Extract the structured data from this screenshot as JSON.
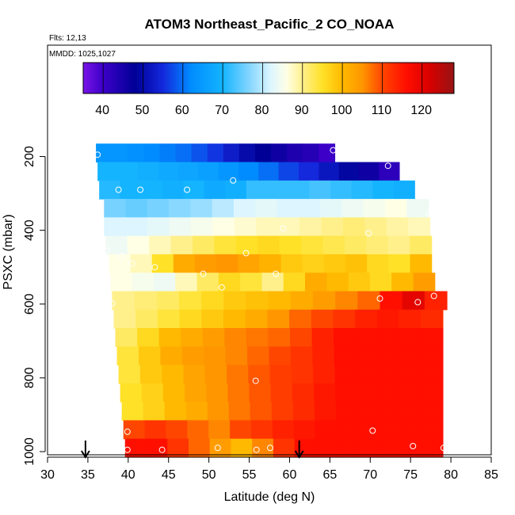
{
  "chart_data": {
    "type": "heatmap",
    "title": "ATOM3 Northeast_Pacific_2 CO_NOAA",
    "flights_label": "Flts: 12,13",
    "mmdd_label": "MMDD: 1025,1027",
    "xlabel": "Latitude (deg N)",
    "ylabel": "PSXC (mbar)",
    "xlim": [
      30,
      85
    ],
    "ylim": [
      1000,
      100
    ],
    "y_reversed": true,
    "x_ticks": [
      "30",
      "35",
      "40",
      "45",
      "50",
      "55",
      "60",
      "65",
      "70",
      "75",
      "80",
      "85"
    ],
    "y_ticks": [
      "200",
      "400",
      "600",
      "800",
      "1000"
    ],
    "colorbar": {
      "range": [
        35,
        128
      ],
      "tick_labels": [
        "40",
        "50",
        "60",
        "70",
        "80",
        "90",
        "100",
        "110",
        "120"
      ],
      "tick_values": [
        40,
        50,
        60,
        70,
        80,
        90,
        100,
        110,
        120
      ]
    },
    "arrows_latitude": [
      34.7,
      61.2
    ],
    "rows": [
      {
        "p": 190,
        "lat_start": 36.0,
        "lat_end": 65.6,
        "values": [
          64,
          64,
          63,
          62,
          61,
          60,
          58,
          56,
          53,
          50,
          48,
          46,
          44,
          43,
          40
        ]
      },
      {
        "p": 240,
        "lat_start": 36.2,
        "lat_end": 73.6,
        "values": [
          70,
          70,
          69,
          68,
          67,
          66,
          64,
          62,
          60,
          57,
          55,
          52,
          49,
          46,
          42
        ]
      },
      {
        "p": 290,
        "lat_start": 36.4,
        "lat_end": 75.5,
        "values": [
          71,
          70,
          70,
          69,
          70,
          68,
          69,
          72,
          72,
          72,
          73,
          72,
          71,
          70,
          69
        ]
      },
      {
        "p": 340,
        "lat_start": 37.0,
        "lat_end": 77.2,
        "values": [
          76,
          75,
          76,
          77,
          78,
          80,
          82,
          83,
          82,
          82,
          83,
          84,
          85,
          86,
          84
        ]
      },
      {
        "p": 390,
        "lat_start": 37.0,
        "lat_end": 77.4,
        "values": [
          82,
          82,
          83,
          84,
          85,
          86,
          87,
          88,
          88,
          89,
          90,
          91,
          90,
          89,
          88
        ]
      },
      {
        "p": 440,
        "lat_start": 37.2,
        "lat_end": 77.6,
        "values": [
          84,
          86,
          88,
          90,
          92,
          94,
          95,
          96,
          95,
          94,
          93,
          92,
          91,
          90,
          92
        ]
      },
      {
        "p": 490,
        "lat_start": 37.6,
        "lat_end": 77.6,
        "values": [
          86,
          88,
          95,
          102,
          104,
          105,
          103,
          101,
          98,
          97,
          98,
          99,
          96,
          95,
          100
        ]
      },
      {
        "p": 540,
        "lat_start": 37.8,
        "lat_end": 78.0,
        "values": [
          86,
          85,
          84,
          88,
          92,
          96,
          94,
          90,
          96,
          102,
          100,
          98,
          96,
          100,
          104
        ]
      },
      {
        "p": 590,
        "lat_start": 38.0,
        "lat_end": 79.5,
        "values": [
          90,
          91,
          92,
          94,
          96,
          98,
          99,
          100,
          102,
          104,
          106,
          108,
          116,
          120,
          114
        ]
      },
      {
        "p": 640,
        "lat_start": 38.2,
        "lat_end": 79.0,
        "values": [
          90,
          92,
          94,
          96,
          98,
          100,
          102,
          105,
          108,
          110,
          112,
          114,
          115,
          114,
          113
        ]
      },
      {
        "p": 690,
        "lat_start": 38.4,
        "lat_end": 79.0,
        "values": [
          92,
          96,
          100,
          102,
          104,
          106,
          107,
          108,
          110,
          114,
          116,
          116,
          116,
          116,
          116
        ]
      },
      {
        "p": 740,
        "lat_start": 38.6,
        "lat_end": 79.0,
        "values": [
          94,
          98,
          102,
          104,
          105,
          106,
          108,
          110,
          112,
          114,
          116,
          116,
          116,
          116,
          116
        ]
      },
      {
        "p": 790,
        "lat_start": 38.8,
        "lat_end": 79.0,
        "values": [
          94,
          98,
          100,
          103,
          105,
          107,
          109,
          111,
          112,
          114,
          116,
          116,
          116,
          116,
          116
        ]
      },
      {
        "p": 840,
        "lat_start": 39.0,
        "lat_end": 79.0,
        "values": [
          95,
          97,
          100,
          103,
          105,
          107,
          109,
          111,
          113,
          115,
          116,
          116,
          116,
          116,
          116
        ]
      },
      {
        "p": 890,
        "lat_start": 39.2,
        "lat_end": 79.0,
        "values": [
          95,
          97,
          100,
          102,
          105,
          107,
          109,
          111,
          113,
          115,
          116,
          116,
          116,
          116,
          116
        ]
      },
      {
        "p": 940,
        "lat_start": 39.4,
        "lat_end": 79.0,
        "values": [
          110,
          112,
          110,
          108,
          106,
          110,
          112,
          114,
          115,
          116,
          116,
          116,
          116,
          116,
          116
        ]
      },
      {
        "p": 990,
        "lat_start": 39.6,
        "lat_end": 79.0,
        "values": [
          116,
          116,
          112,
          108,
          104,
          100,
          106,
          112,
          116,
          116,
          116,
          116,
          116,
          116,
          116
        ]
      }
    ],
    "observation_points": [
      {
        "lat": 36.2,
        "p": 195
      },
      {
        "lat": 65.4,
        "p": 183
      },
      {
        "lat": 72.2,
        "p": 225
      },
      {
        "lat": 53.0,
        "p": 265
      },
      {
        "lat": 38.8,
        "p": 290
      },
      {
        "lat": 41.5,
        "p": 290
      },
      {
        "lat": 47.3,
        "p": 290
      },
      {
        "lat": 77.3,
        "p": 355
      },
      {
        "lat": 59.2,
        "p": 395
      },
      {
        "lat": 69.8,
        "p": 408
      },
      {
        "lat": 37.4,
        "p": 455
      },
      {
        "lat": 39.2,
        "p": 470
      },
      {
        "lat": 40.5,
        "p": 490
      },
      {
        "lat": 54.6,
        "p": 462
      },
      {
        "lat": 43.3,
        "p": 500
      },
      {
        "lat": 49.3,
        "p": 518
      },
      {
        "lat": 58.3,
        "p": 518
      },
      {
        "lat": 51.6,
        "p": 555
      },
      {
        "lat": 38.0,
        "p": 598
      },
      {
        "lat": 71.2,
        "p": 585
      },
      {
        "lat": 75.9,
        "p": 595
      },
      {
        "lat": 77.9,
        "p": 578
      },
      {
        "lat": 55.8,
        "p": 808
      },
      {
        "lat": 70.3,
        "p": 943
      },
      {
        "lat": 39.9,
        "p": 946
      },
      {
        "lat": 75.3,
        "p": 985
      },
      {
        "lat": 79.1,
        "p": 990
      },
      {
        "lat": 39.9,
        "p": 995
      },
      {
        "lat": 44.2,
        "p": 995
      },
      {
        "lat": 51.1,
        "p": 990
      },
      {
        "lat": 55.9,
        "p": 995
      },
      {
        "lat": 57.6,
        "p": 990
      }
    ]
  }
}
